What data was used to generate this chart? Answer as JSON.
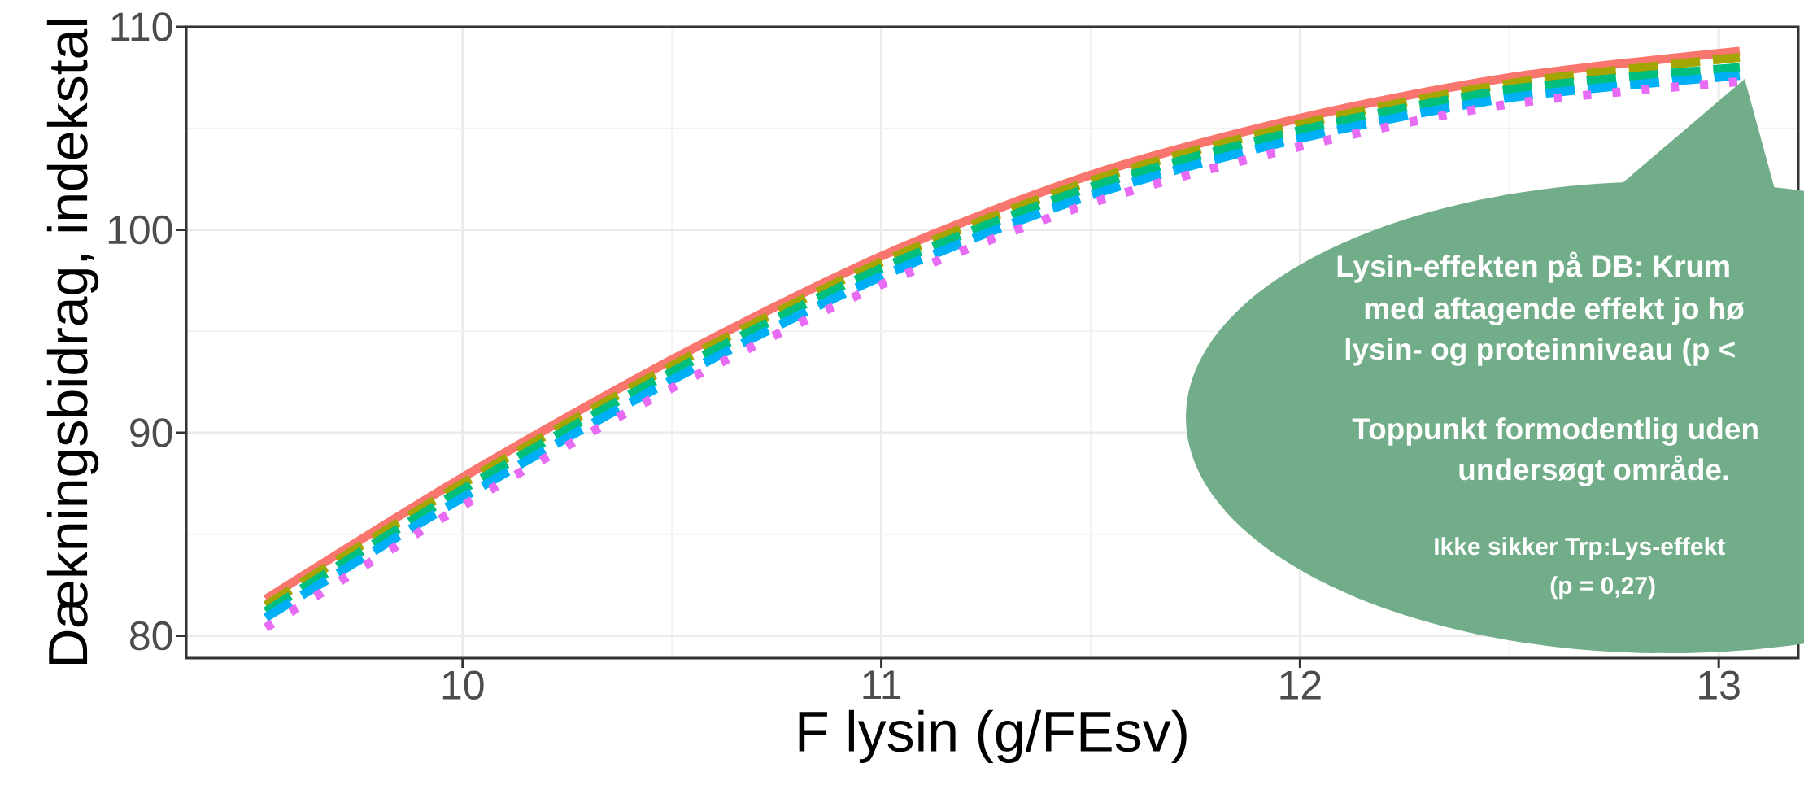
{
  "chart_data": {
    "type": "line",
    "xlabel": "F lysin (g/FEsv)",
    "ylabel": "Dækningsbidrag, indekstal",
    "x": [
      9.53,
      10,
      10.5,
      11,
      11.5,
      12,
      12.5,
      13.05
    ],
    "series": [
      {
        "color": "#f8766d",
        "line_style": "solid",
        "values": [
          81.8,
          87.8,
          93.6,
          98.7,
          102.7,
          105.5,
          107.5,
          108.8
        ]
      },
      {
        "color": "#a3a500",
        "line_style": "dashed",
        "values": [
          81.5,
          87.5,
          93.3,
          98.4,
          102.4,
          105.2,
          107.2,
          108.5
        ]
      },
      {
        "color": "#00bf7d",
        "line_style": "dashed",
        "values": [
          81.2,
          87.2,
          93.0,
          98.1,
          102.1,
          104.9,
          106.9,
          108.0
        ]
      },
      {
        "color": "#00b0f6",
        "line_style": "dashed",
        "values": [
          80.9,
          86.8,
          92.6,
          97.7,
          101.7,
          104.5,
          106.5,
          107.6
        ]
      },
      {
        "color": "#e76bf3",
        "line_style": "dotted",
        "values": [
          80.4,
          86.4,
          92.2,
          97.3,
          101.3,
          104.1,
          106.2,
          107.3
        ]
      }
    ],
    "xlim": [
      9.34,
      13.19
    ],
    "ylim": [
      78.9,
      110
    ],
    "xticks": [
      10,
      11,
      12,
      13
    ],
    "yticks": [
      80,
      90,
      100,
      110
    ],
    "grid": true,
    "marker": "none",
    "annotations": [
      "Lysin-effekten på DB: Krum",
      "med aftagende effekt jo hø",
      "lysin- og proteinniveau (p <",
      "Toppunkt formodentlig uden",
      "undersøgt område.",
      "Ikke sikker Trp:Lys-effekt",
      "(p = 0,27)"
    ]
  }
}
